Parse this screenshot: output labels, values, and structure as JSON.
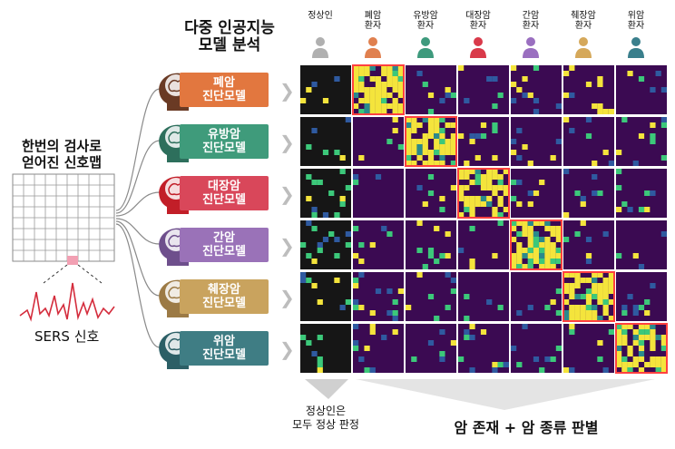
{
  "title": [
    "다중 인공지능",
    "모델 분석"
  ],
  "left_title": [
    "한번의 검사로",
    "얻어진 신호맵"
  ],
  "sers_label": "SERS 신호",
  "colors": {
    "heatmap_bg": "#3b0a52",
    "normal_bg": "#161616",
    "highlight": "#ff4040",
    "yellow": "#f4e43c",
    "green": "#3cc87a",
    "teal": "#2a8a8c",
    "blue": "#2f5aa0"
  },
  "columns": [
    {
      "label": [
        "정상인",
        ""
      ],
      "icon_color": "#b0b0b0"
    },
    {
      "label": [
        "폐암",
        "환자"
      ],
      "icon_color": "#e0804f"
    },
    {
      "label": [
        "유방암",
        "환자"
      ],
      "icon_color": "#3e9a7d"
    },
    {
      "label": [
        "대장암",
        "환자"
      ],
      "icon_color": "#d93a4a"
    },
    {
      "label": [
        "간암",
        "환자"
      ],
      "icon_color": "#9a6fc0"
    },
    {
      "label": [
        "췌장암",
        "환자"
      ],
      "icon_color": "#d5a85a"
    },
    {
      "label": [
        "위암",
        "환자"
      ],
      "icon_color": "#3a7f8c"
    }
  ],
  "models": [
    {
      "label": [
        "폐암",
        "진단모델"
      ],
      "color": "#e2773f",
      "head_icon": "brain-head-icon"
    },
    {
      "label": [
        "유방암",
        "진단모델"
      ],
      "color": "#3f9b7b",
      "head_icon": "brain-head-icon"
    },
    {
      "label": [
        "대장암",
        "진단모델"
      ],
      "color": "#d9475a",
      "head_icon": "brain-head-icon"
    },
    {
      "label": [
        "간암",
        "진단모델"
      ],
      "color": "#9a72b8",
      "head_icon": "brain-head-icon"
    },
    {
      "label": [
        "췌장암",
        "진단모델"
      ],
      "color": "#c9a35e",
      "head_icon": "brain-head-icon"
    },
    {
      "label": [
        "위암",
        "진단모델"
      ],
      "color": "#3f7d84",
      "head_icon": "brain-head-icon"
    }
  ],
  "bottom_left": [
    "정상인은",
    "모두 정상 판정"
  ],
  "bottom_right": "암 존재 + 암 종류 판별"
}
